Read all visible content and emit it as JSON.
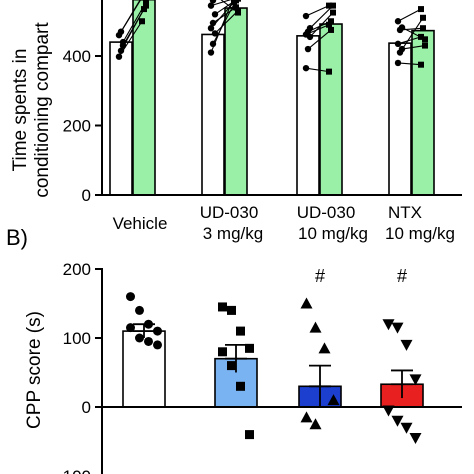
{
  "colors": {
    "axis": "#000000",
    "bar_white": "#ffffff",
    "bar_green": "#99f0a6",
    "bar_light_blue": "#7ab3f2",
    "bar_blue": "#1c3fd0",
    "bar_red": "#e82020"
  },
  "chart_data": [
    {
      "type": "bar",
      "panel": "A",
      "title": "",
      "xlabel": "",
      "ylabel_line1": "Time spents in",
      "ylabel_line2": "conditioning compart",
      "ylim": [
        0,
        600
      ],
      "yticks": [
        0,
        200,
        400
      ],
      "grid": false,
      "groups": [
        {
          "label1": "Vehicle",
          "label2": ""
        },
        {
          "label1": "UD-030",
          "label2": "3 mg/kg"
        },
        {
          "label1": "UD-030",
          "label2": "10 mg/kg"
        },
        {
          "label1": "NTX",
          "label2": "10 mg/kg"
        }
      ],
      "series": [
        {
          "values": [
            440,
            462,
            458,
            437
          ],
          "color": "bar_white"
        },
        {
          "values": [
            562,
            538,
            492,
            473
          ],
          "color": "bar_green"
        }
      ],
      "paired_points": [
        [
          [
            398,
            500
          ],
          [
            415,
            535
          ],
          [
            440,
            555
          ],
          [
            460,
            568
          ],
          [
            470,
            580
          ],
          [
            430,
            545
          ]
        ],
        [
          [
            410,
            570
          ],
          [
            435,
            560
          ],
          [
            465,
            530
          ],
          [
            480,
            555
          ],
          [
            495,
            540
          ],
          [
            520,
            565
          ],
          [
            545,
            565
          ],
          [
            560,
            580
          ],
          [
            575,
            525
          ]
        ],
        [
          [
            365,
            355
          ],
          [
            420,
            475
          ],
          [
            455,
            525
          ],
          [
            462,
            490
          ],
          [
            470,
            500
          ],
          [
            480,
            545
          ],
          [
            515,
            545
          ]
        ],
        [
          [
            380,
            375
          ],
          [
            410,
            510
          ],
          [
            420,
            430
          ],
          [
            435,
            455
          ],
          [
            475,
            480
          ],
          [
            482,
            448
          ],
          [
            500,
            535
          ]
        ]
      ]
    },
    {
      "type": "bar",
      "panel": "B",
      "title": "",
      "xlabel": "",
      "ylabel": "CPP score (s)",
      "ylim": [
        -100,
        200
      ],
      "yticks": [
        -100,
        0,
        100,
        200
      ],
      "ytick_labels": [
        "100",
        "0",
        "100",
        "200"
      ],
      "grid": false,
      "categories": [
        "Vehicle",
        "UD-030 3 mg/kg",
        "UD-030 10 mg/kg",
        "NTX 10 mg/kg"
      ],
      "values": [
        110,
        70,
        30,
        33
      ],
      "sem": [
        10,
        20,
        30,
        20
      ],
      "colors": [
        "bar_white",
        "bar_light_blue",
        "bar_blue",
        "bar_red"
      ],
      "markers": [
        "circle",
        "square",
        "triangle-up",
        "triangle-down"
      ],
      "significance": [
        "",
        "",
        "#",
        "#"
      ],
      "points": [
        [
          160,
          140,
          120,
          110,
          115,
          100,
          95,
          90
        ],
        [
          145,
          140,
          110,
          85,
          80,
          60,
          30,
          -40
        ],
        [
          150,
          115,
          85,
          10,
          -15,
          -25
        ],
        [
          120,
          115,
          90,
          40,
          -5,
          -20,
          -30,
          -45
        ]
      ]
    }
  ],
  "panel_label_b": "B)"
}
